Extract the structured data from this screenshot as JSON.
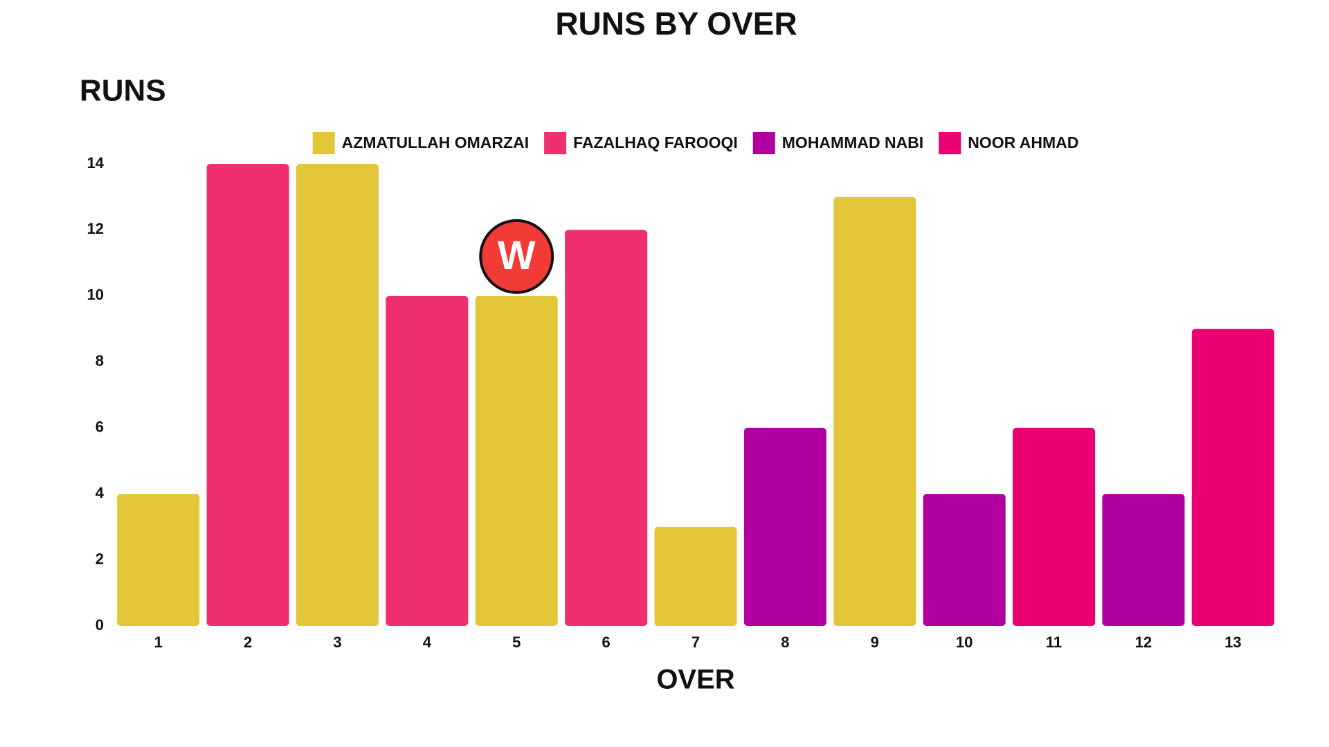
{
  "chart_data": {
    "type": "bar",
    "title": "RUNS BY OVER",
    "y_label": "RUNS",
    "x_label": "OVER",
    "categories": [
      "1",
      "2",
      "3",
      "4",
      "5",
      "6",
      "7",
      "8",
      "9",
      "10",
      "11",
      "12",
      "13"
    ],
    "series": [
      {
        "name": "AZMATULLAH OMARZAI",
        "color": "#e3c738",
        "values": [
          4,
          null,
          14,
          null,
          10,
          null,
          3,
          null,
          13,
          null,
          null,
          null,
          null
        ]
      },
      {
        "name": "FAZALHAQ FAROOQI",
        "color": "#f0306e",
        "values": [
          null,
          14,
          null,
          10,
          null,
          12,
          null,
          null,
          null,
          null,
          null,
          null,
          null
        ]
      },
      {
        "name": "MOHAMMAD NABI",
        "color": "#b000a0",
        "values": [
          null,
          null,
          null,
          null,
          null,
          null,
          null,
          6,
          null,
          4,
          null,
          4,
          null
        ]
      },
      {
        "name": "NOOR AHMAD",
        "color": "#ea0070",
        "values": [
          null,
          null,
          null,
          null,
          null,
          null,
          null,
          null,
          null,
          null,
          6,
          null,
          9
        ]
      }
    ],
    "annotations": [
      {
        "text": "W",
        "category": "5",
        "color": "#f23a36"
      }
    ],
    "ylim": [
      0,
      14
    ],
    "yticks": [
      0,
      2,
      4,
      6,
      8,
      10,
      12,
      14
    ],
    "grid": false,
    "legend": "top"
  }
}
